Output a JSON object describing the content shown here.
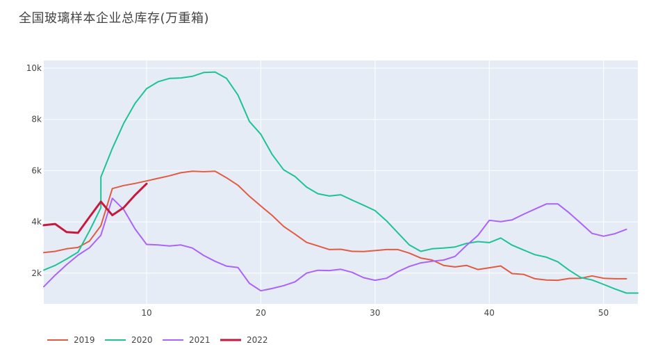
{
  "chart_data": {
    "type": "line",
    "title": "全国玻璃样本企业总库存(万重箱)",
    "xlabel": "",
    "ylabel": "",
    "xlim": [
      1,
      53
    ],
    "ylim": [
      800,
      10300
    ],
    "x_ticks": [
      10,
      20,
      30,
      40,
      50
    ],
    "y_ticks": [
      2000,
      4000,
      6000,
      8000,
      10000
    ],
    "y_tick_labels": [
      "2k",
      "4k",
      "6k",
      "8k",
      "10k"
    ],
    "grid": true,
    "legend_position": "bottom-left",
    "series": [
      {
        "name": "2019",
        "color": "#e05b41",
        "x": [
          1,
          2,
          3,
          4,
          5,
          6,
          7,
          8,
          9,
          10,
          11,
          12,
          13,
          14,
          15,
          16,
          17,
          18,
          19,
          20,
          21,
          22,
          23,
          24,
          25,
          26,
          27,
          28,
          29,
          30,
          31,
          32,
          33,
          34,
          35,
          36,
          37,
          38,
          39,
          40,
          41,
          42,
          43,
          44,
          45,
          46,
          47,
          48,
          49,
          50,
          51,
          52
        ],
        "values": [
          2800,
          2850,
          2950,
          3000,
          3250,
          3850,
          5300,
          5420,
          5500,
          5600,
          5700,
          5800,
          5920,
          5980,
          5960,
          5980,
          5720,
          5430,
          5000,
          4620,
          4250,
          3820,
          3520,
          3200,
          3060,
          2920,
          2930,
          2850,
          2840,
          2880,
          2920,
          2920,
          2780,
          2590,
          2510,
          2300,
          2240,
          2300,
          2140,
          2210,
          2280,
          1980,
          1950,
          1780,
          1730,
          1720,
          1790,
          1800,
          1890,
          1800,
          1780,
          1780
        ]
      },
      {
        "name": "2020",
        "color": "#1dc295",
        "x": [
          1,
          2,
          3,
          4,
          5,
          6,
          6,
          7,
          8,
          9,
          10,
          11,
          12,
          13,
          14,
          15,
          16,
          17,
          18,
          19,
          20,
          21,
          22,
          23,
          24,
          25,
          26,
          27,
          28,
          29,
          30,
          31,
          32,
          33,
          34,
          35,
          36,
          37,
          38,
          39,
          40,
          41,
          42,
          43,
          44,
          45,
          46,
          47,
          48,
          49,
          50,
          51,
          52,
          53
        ],
        "values": [
          2120,
          2300,
          2550,
          2820,
          3650,
          4550,
          5750,
          6870,
          7850,
          8630,
          9200,
          9470,
          9600,
          9620,
          9680,
          9830,
          9850,
          9600,
          8950,
          7920,
          7420,
          6630,
          6030,
          5770,
          5360,
          5100,
          5010,
          5060,
          4850,
          4650,
          4440,
          4040,
          3570,
          3100,
          2850,
          2950,
          2980,
          3020,
          3160,
          3230,
          3190,
          3370,
          3090,
          2900,
          2720,
          2620,
          2440,
          2110,
          1830,
          1730,
          1560,
          1380,
          1220,
          1220
        ]
      },
      {
        "name": "2021",
        "color": "#ab63fa",
        "x": [
          1,
          2,
          3,
          4,
          5,
          6,
          7,
          8,
          9,
          10,
          11,
          12,
          13,
          14,
          15,
          16,
          17,
          18,
          19,
          20,
          21,
          22,
          23,
          24,
          25,
          26,
          27,
          28,
          29,
          30,
          31,
          32,
          33,
          34,
          35,
          36,
          37,
          38,
          39,
          40,
          41,
          42,
          43,
          44,
          45,
          46,
          47,
          48,
          49,
          50,
          51,
          52
        ],
        "values": [
          1470,
          1920,
          2330,
          2700,
          2990,
          3480,
          4920,
          4480,
          3720,
          3120,
          3100,
          3060,
          3100,
          2980,
          2690,
          2460,
          2270,
          2220,
          1600,
          1310,
          1400,
          1510,
          1660,
          2000,
          2110,
          2100,
          2150,
          2030,
          1820,
          1720,
          1800,
          2060,
          2260,
          2400,
          2460,
          2510,
          2650,
          3080,
          3470,
          4060,
          4010,
          4080,
          4300,
          4500,
          4700,
          4700,
          4350,
          3950,
          3550,
          3440,
          3540,
          3710
        ]
      },
      {
        "name": "2022",
        "color": "#c7193d",
        "width": 3,
        "x": [
          1,
          2,
          3,
          4,
          5,
          6,
          7,
          8,
          9,
          10
        ],
        "values": [
          3870,
          3920,
          3600,
          3570,
          4190,
          4790,
          4260,
          4560,
          5050,
          5490
        ]
      }
    ]
  }
}
